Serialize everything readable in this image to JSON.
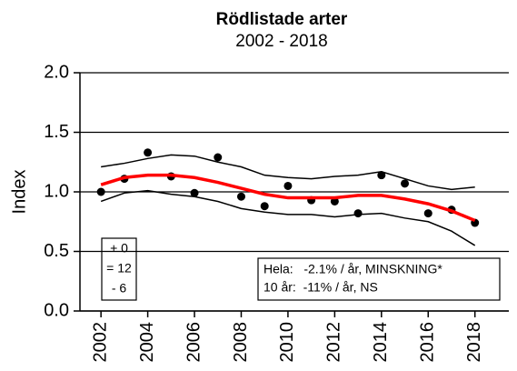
{
  "chart_data": {
    "type": "line",
    "title": "Rödlistade arter",
    "subtitle": "2002 - 2018",
    "ylabel": "Index",
    "x": [
      2002,
      2003,
      2004,
      2005,
      2006,
      2007,
      2008,
      2009,
      2010,
      2011,
      2012,
      2013,
      2014,
      2015,
      2016,
      2017,
      2018
    ],
    "series": [
      {
        "style": "points",
        "color": "#000000",
        "values": [
          1.0,
          1.11,
          1.33,
          1.13,
          0.99,
          1.29,
          0.96,
          0.88,
          1.05,
          0.93,
          0.92,
          0.82,
          1.14,
          1.07,
          0.82,
          0.85,
          0.74
        ]
      },
      {
        "style": "line",
        "color": "#ff0000",
        "values": [
          1.06,
          1.12,
          1.14,
          1.14,
          1.12,
          1.08,
          1.03,
          0.98,
          0.95,
          0.95,
          0.95,
          0.97,
          0.97,
          0.94,
          0.9,
          0.84,
          0.76
        ]
      },
      {
        "style": "line",
        "color": "#000000",
        "values": [
          1.21,
          1.24,
          1.28,
          1.31,
          1.3,
          1.25,
          1.21,
          1.14,
          1.12,
          1.11,
          1.13,
          1.14,
          1.17,
          1.11,
          1.05,
          1.02,
          1.04
        ]
      },
      {
        "style": "line",
        "color": "#000000",
        "values": [
          0.92,
          0.99,
          1.01,
          0.98,
          0.96,
          0.92,
          0.86,
          0.83,
          0.81,
          0.81,
          0.79,
          0.81,
          0.82,
          0.78,
          0.75,
          0.67,
          0.55
        ]
      }
    ],
    "xlim": [
      2001.1,
      2019.45
    ],
    "xticks": [
      2002,
      2004,
      2006,
      2008,
      2010,
      2012,
      2014,
      2016,
      2018
    ],
    "ylim": [
      0,
      2.0
    ],
    "yticks": [
      {
        "value": 0,
        "label": "0.0"
      },
      {
        "value": 0.5,
        "label": "0.5"
      },
      {
        "value": 1.0,
        "label": "1.0"
      },
      {
        "value": 1.5,
        "label": "1.5"
      },
      {
        "value": 2.0,
        "label": "2.0"
      }
    ],
    "grid": true,
    "annotations": [
      [
        "+ 0",
        "= 12",
        "- 6"
      ],
      [
        "Hela:   -2.1% / år, MINSKNING*",
        "10 år:  -11% / år, NS"
      ]
    ]
  }
}
